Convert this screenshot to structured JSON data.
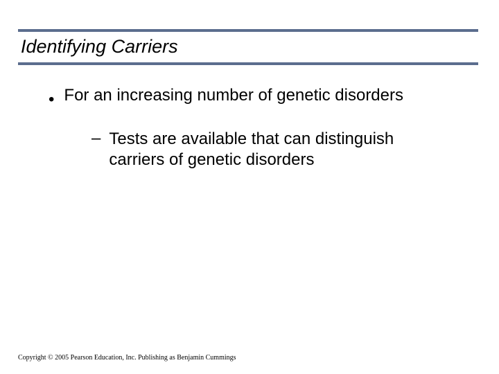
{
  "colors": {
    "rule": "#5b6d8e",
    "text": "#000000",
    "bg": "#ffffff"
  },
  "title": {
    "text": "Identifying Carriers",
    "fontsize": 27
  },
  "bullets": {
    "level1": {
      "text": "For an increasing number of genetic disorders",
      "fontsize": 24,
      "marker": "•"
    },
    "level2": {
      "text": "Tests are available that can distinguish carriers of genetic disorders",
      "fontsize": 24,
      "marker": "–"
    }
  },
  "copyright": {
    "text": "Copyright © 2005 Pearson Education, Inc. Publishing as Benjamin Cummings",
    "fontsize": 10
  }
}
